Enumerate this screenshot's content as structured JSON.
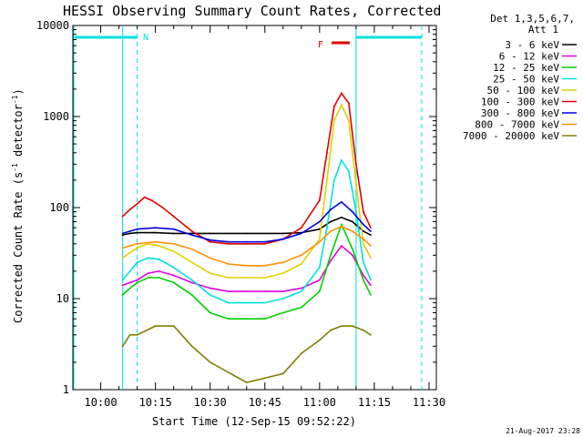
{
  "chart_data": {
    "type": "line",
    "title": "HESSI Observing Summary Count Rates, Corrected",
    "xlabel": "Start Time (12-Sep-15 09:52:22)",
    "ylabel": "Corrected Count Rate (s⁻¹ detector⁻¹)",
    "ylabel_main": "Corrected Count Rate (s",
    "ylabel_sup1": "-1",
    "ylabel_mid": " detector",
    "ylabel_sup2": "-1",
    "ylabel_end": ")",
    "yscale": "log",
    "ylim": [
      1,
      10000
    ],
    "xlim": [
      "09:52",
      "11:32"
    ],
    "x_ticks": [
      "10:00",
      "10:15",
      "10:30",
      "10:45",
      "11:00",
      "11:15",
      "11:30"
    ],
    "y_ticks": [
      "1",
      "10",
      "100",
      "1000",
      "10000"
    ],
    "legend_header": [
      "Det 1,3,5,6,7,",
      "Att 1"
    ],
    "legend_position": "right",
    "series": [
      {
        "name": "3 - 6 keV",
        "color": "#000000",
        "x": [
          "10:06",
          "10:08",
          "10:10",
          "10:15",
          "10:20",
          "10:25",
          "10:30",
          "10:40",
          "10:50",
          "10:55",
          "11:00",
          "11:03",
          "11:06",
          "11:09",
          "11:12",
          "11:14"
        ],
        "values": [
          50,
          52,
          53,
          53,
          52,
          52,
          52,
          52,
          52,
          53,
          58,
          70,
          78,
          70,
          55,
          50
        ]
      },
      {
        "name": "6 - 12 keV",
        "color": "#e000e0",
        "x": [
          "10:06",
          "10:08",
          "10:10",
          "10:13",
          "10:16",
          "10:20",
          "10:25",
          "10:30",
          "10:35",
          "10:40",
          "10:45",
          "10:50",
          "10:55",
          "11:00",
          "11:03",
          "11:06",
          "11:09",
          "11:12",
          "11:14"
        ],
        "values": [
          14,
          15,
          16,
          19,
          20,
          18,
          15,
          13,
          12,
          12,
          12,
          12,
          13,
          16,
          26,
          38,
          30,
          18,
          14
        ]
      },
      {
        "name": "12 - 25 keV",
        "color": "#00d000",
        "x": [
          "10:06",
          "10:08",
          "10:10",
          "10:13",
          "10:16",
          "10:20",
          "10:25",
          "10:30",
          "10:35",
          "10:40",
          "10:45",
          "10:50",
          "10:55",
          "11:00",
          "11:03",
          "11:06",
          "11:09",
          "11:12",
          "11:14"
        ],
        "values": [
          11,
          13,
          15,
          17,
          17,
          15,
          11,
          7,
          6,
          6,
          6,
          7,
          8,
          12,
          30,
          65,
          35,
          16,
          11
        ]
      },
      {
        "name": "25 - 50 keV",
        "color": "#00e0e0",
        "x": [
          "10:06",
          "10:08",
          "10:10",
          "10:13",
          "10:16",
          "10:20",
          "10:25",
          "10:30",
          "10:35",
          "10:40",
          "10:45",
          "10:50",
          "10:55",
          "11:00",
          "11:02",
          "11:04",
          "11:06",
          "11:08",
          "11:10",
          "11:12",
          "11:14"
        ],
        "values": [
          16,
          20,
          25,
          28,
          27,
          22,
          16,
          11,
          9,
          9,
          9,
          10,
          12,
          22,
          60,
          200,
          330,
          250,
          90,
          25,
          16
        ]
      },
      {
        "name": "50 - 100 keV",
        "color": "#e0d000",
        "x": [
          "10:06",
          "10:08",
          "10:10",
          "10:13",
          "10:16",
          "10:20",
          "10:25",
          "10:30",
          "10:35",
          "10:40",
          "10:45",
          "10:50",
          "10:55",
          "11:00",
          "11:02",
          "11:04",
          "11:06",
          "11:08",
          "11:10",
          "11:12",
          "11:14"
        ],
        "values": [
          28,
          32,
          36,
          40,
          38,
          33,
          25,
          19,
          17,
          17,
          17,
          19,
          24,
          45,
          200,
          900,
          1350,
          900,
          180,
          40,
          28
        ]
      },
      {
        "name": "100 - 300 keV",
        "color": "#e00000",
        "x": [
          "10:06",
          "10:08",
          "10:10",
          "10:12",
          "10:14",
          "10:17",
          "10:20",
          "10:25",
          "10:30",
          "10:35",
          "10:40",
          "10:45",
          "10:50",
          "10:55",
          "11:00",
          "11:02",
          "11:04",
          "11:06",
          "11:08",
          "11:10",
          "11:12",
          "11:14"
        ],
        "values": [
          80,
          95,
          110,
          130,
          120,
          100,
          80,
          55,
          42,
          40,
          40,
          40,
          45,
          60,
          120,
          400,
          1300,
          1800,
          1400,
          300,
          90,
          60
        ]
      },
      {
        "name": "300 - 800 keV",
        "color": "#0000e0",
        "x": [
          "10:06",
          "10:08",
          "10:10",
          "10:15",
          "10:20",
          "10:25",
          "10:30",
          "10:35",
          "10:40",
          "10:45",
          "10:50",
          "10:55",
          "11:00",
          "11:03",
          "11:06",
          "11:09",
          "11:12",
          "11:14"
        ],
        "values": [
          52,
          55,
          58,
          60,
          58,
          50,
          44,
          42,
          42,
          42,
          45,
          52,
          70,
          95,
          115,
          90,
          65,
          55
        ]
      },
      {
        "name": "800 - 7000 keV",
        "color": "#ff9000",
        "x": [
          "10:06",
          "10:08",
          "10:10",
          "10:15",
          "10:20",
          "10:25",
          "10:30",
          "10:35",
          "10:40",
          "10:45",
          "10:50",
          "10:55",
          "11:00",
          "11:03",
          "11:06",
          "11:09",
          "11:12",
          "11:14"
        ],
        "values": [
          36,
          38,
          40,
          42,
          40,
          35,
          28,
          24,
          23,
          23,
          25,
          30,
          42,
          55,
          62,
          55,
          45,
          38
        ]
      },
      {
        "name": "7000 - 20000 keV",
        "color": "#808000",
        "x": [
          "10:06",
          "10:08",
          "10:10",
          "10:15",
          "10:20",
          "10:25",
          "10:30",
          "10:40",
          "10:50",
          "10:55",
          "11:00",
          "11:03",
          "11:06",
          "11:09",
          "11:12",
          "11:14"
        ],
        "values": [
          3,
          4,
          4,
          5,
          5,
          3,
          2,
          1.2,
          1.5,
          2.5,
          3.5,
          4.5,
          5,
          5,
          4.5,
          4
        ]
      }
    ],
    "annotations": [
      {
        "text": "N",
        "color": "#00e0e0"
      },
      {
        "text": "F",
        "color": "#e00000"
      }
    ],
    "timestamp": "21-Aug-2017 23:28"
  },
  "colors": {
    "cyan": "#00e0e0",
    "flare_red": "#e00000",
    "axis": "#000000"
  }
}
